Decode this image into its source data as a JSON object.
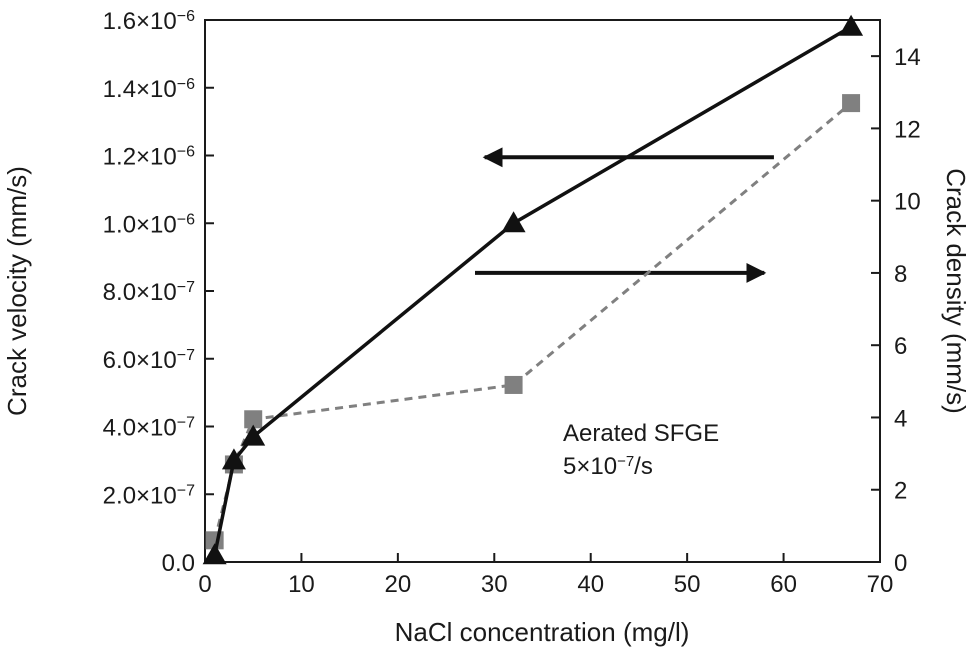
{
  "chart_data": {
    "type": "line",
    "xlabel": "NaCl concentration (mg/l)",
    "ylabel_left": "Crack velocity (mm/s)",
    "ylabel_right": "Crack density (mm/s)",
    "xlim": [
      0,
      70
    ],
    "x_ticks": [
      "0",
      "10",
      "20",
      "30",
      "40",
      "50",
      "60",
      "70"
    ],
    "ylim_left": [
      0,
      1.6e-06
    ],
    "y_left_ticks": [
      {
        "mant": "0.0",
        "exp": ""
      },
      {
        "mant": "2.0",
        "exp": "−7"
      },
      {
        "mant": "4.0",
        "exp": "−7"
      },
      {
        "mant": "6.0",
        "exp": "−7"
      },
      {
        "mant": "8.0",
        "exp": "−7"
      },
      {
        "mant": "1.0",
        "exp": "−6"
      },
      {
        "mant": "1.2",
        "exp": "−6"
      },
      {
        "mant": "1.4",
        "exp": "−6"
      },
      {
        "mant": "1.6",
        "exp": "−6"
      }
    ],
    "ylim_right": [
      0,
      15
    ],
    "y_right_ticks": [
      "0",
      "2",
      "4",
      "6",
      "8",
      "10",
      "12",
      "14"
    ],
    "series": [
      {
        "axis": "left",
        "marker": "triangle",
        "line_style": "solid",
        "color": "#111111",
        "x": [
          1,
          3,
          5,
          32,
          67
        ],
        "y": [
          2e-08,
          3e-07,
          3.7e-07,
          1e-06,
          1.58e-06
        ]
      },
      {
        "axis": "right",
        "marker": "square",
        "line_style": "dashed",
        "color": "#808080",
        "x": [
          1,
          3,
          5,
          32,
          67
        ],
        "y": [
          0.6,
          2.7,
          3.95,
          4.9,
          12.7
        ]
      }
    ],
    "annotation": {
      "line1": "Aerated SFGE",
      "line2_prefix": "5×10",
      "line2_exp": "−7",
      "line2_suffix": "/s"
    },
    "arrows": [
      {
        "points_to": "left axis",
        "x_from": 59,
        "x_to": 29,
        "y_right": 11.2
      },
      {
        "points_to": "right axis",
        "x_from": 28,
        "x_to": 58,
        "y_right": 8.0
      }
    ],
    "grid": false,
    "legend": "none"
  }
}
